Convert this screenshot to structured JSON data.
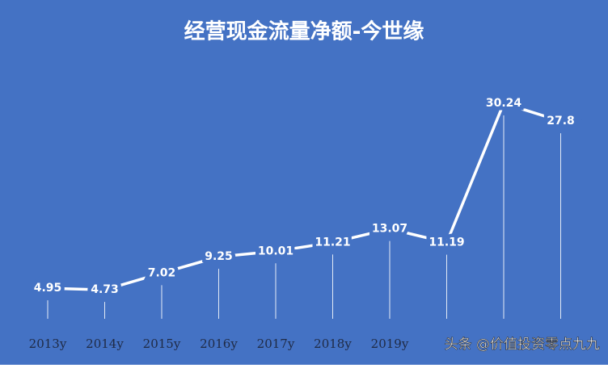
{
  "chart_data": {
    "type": "line",
    "title": "经营现金流量净额-今世缘",
    "categories": [
      "2013y",
      "2014y",
      "2015y",
      "2016y",
      "2017y",
      "2018y",
      "2019y",
      null,
      null,
      null
    ],
    "values": [
      4.95,
      4.73,
      7.02,
      9.25,
      10.01,
      11.21,
      13.07,
      11.19,
      30.24,
      27.8
    ],
    "color": "#ffffff",
    "background": "#4472c4",
    "watermark": "头条 @价值投资零点九九"
  }
}
